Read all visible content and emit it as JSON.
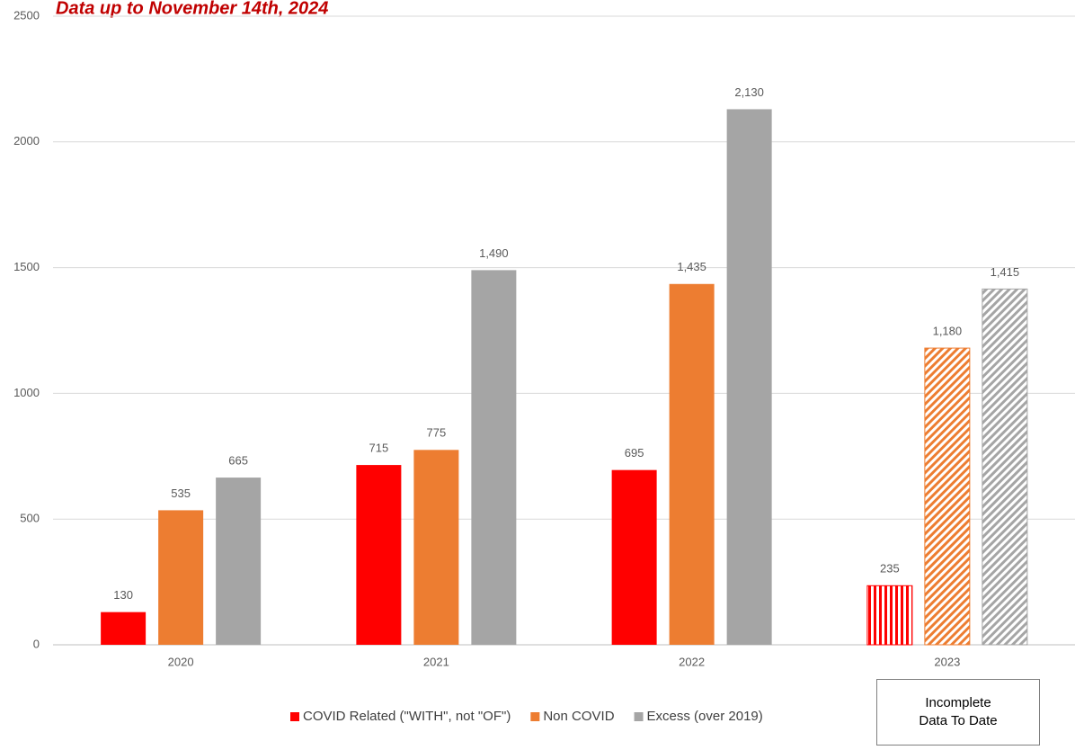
{
  "chart_data": {
    "type": "bar",
    "title": "Data up to November 14th, 2024",
    "categories": [
      "2020",
      "2021",
      "2022",
      "2023"
    ],
    "series": [
      {
        "name": "COVID Related (\"WITH\", not \"OF\")",
        "color": "#ff0000",
        "values": [
          130,
          715,
          695,
          235
        ]
      },
      {
        "name": "Non COVID",
        "color": "#ed7d31",
        "values": [
          535,
          775,
          1435,
          1180
        ],
        "value_labels": [
          "535",
          "775",
          "1,435",
          "1,180"
        ]
      },
      {
        "name": "Excess (over 2019)",
        "color": "#a5a5a5",
        "values": [
          665,
          1490,
          2130,
          1415
        ],
        "value_labels": [
          "665",
          "1,490",
          "2,130",
          "1,415"
        ]
      }
    ],
    "hatched": [
      false,
      false,
      false,
      true
    ],
    "ylim": [
      0,
      2500
    ],
    "yticks": [
      0,
      500,
      1000,
      1500,
      2000,
      2500
    ],
    "grid": true,
    "legend": "bottom",
    "annotation": "Incomplete Data To Date"
  }
}
